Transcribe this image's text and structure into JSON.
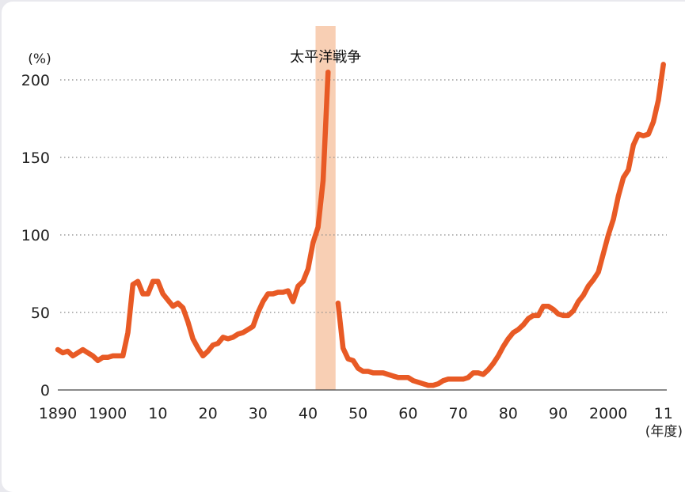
{
  "chart_data": {
    "type": "line",
    "title": "",
    "ylabel": "(%)",
    "xlabel": "(年度)",
    "ylim": [
      0,
      215
    ],
    "xlim": [
      1890,
      2012
    ],
    "yticks": [
      0,
      50,
      100,
      150,
      200
    ],
    "xticks": [
      {
        "value": 1890,
        "label": "1890"
      },
      {
        "value": 1900,
        "label": "1900"
      },
      {
        "value": 1910,
        "label": "10"
      },
      {
        "value": 1920,
        "label": "20"
      },
      {
        "value": 1930,
        "label": "30"
      },
      {
        "value": 1940,
        "label": "40"
      },
      {
        "value": 1950,
        "label": "50"
      },
      {
        "value": 1960,
        "label": "60"
      },
      {
        "value": 1970,
        "label": "70"
      },
      {
        "value": 1980,
        "label": "80"
      },
      {
        "value": 1990,
        "label": "90"
      },
      {
        "value": 2000,
        "label": "2000"
      },
      {
        "value": 2011,
        "label": "11"
      }
    ],
    "grid": "horizontal-dotted",
    "line_color": "#e85a25",
    "band_color": "#f8cfb4",
    "annotation": {
      "text": "太平洋戦争",
      "x_start": 1941.5,
      "x_end": 1945.5
    },
    "series": [
      {
        "segment": "prewar",
        "x": [
          1890,
          1891,
          1892,
          1893,
          1894,
          1895,
          1896,
          1897,
          1898,
          1899,
          1900,
          1901,
          1902,
          1903,
          1904,
          1905,
          1906,
          1907,
          1908,
          1909,
          1910,
          1911,
          1912,
          1913,
          1914,
          1915,
          1916,
          1917,
          1918,
          1919,
          1920,
          1921,
          1922,
          1923,
          1924,
          1925,
          1926,
          1927,
          1928,
          1929,
          1930,
          1931,
          1932,
          1933,
          1934,
          1935,
          1936,
          1937,
          1938,
          1939,
          1940,
          1941,
          1942,
          1943,
          1944
        ],
        "y": [
          26,
          24,
          25,
          22,
          24,
          26,
          24,
          22,
          19,
          21,
          21,
          22,
          22,
          22,
          37,
          68,
          70,
          62,
          62,
          70,
          70,
          62,
          58,
          54,
          56,
          53,
          44,
          33,
          27,
          22,
          25,
          29,
          30,
          34,
          33,
          34,
          36,
          37,
          39,
          41,
          50,
          57,
          62,
          62,
          63,
          63,
          64,
          57,
          67,
          70,
          78,
          95,
          105,
          135,
          205
        ]
      },
      {
        "segment": "postwar",
        "x": [
          1946,
          1947,
          1948,
          1949,
          1950,
          1951,
          1952,
          1953,
          1954,
          1955,
          1956,
          1957,
          1958,
          1959,
          1960,
          1961,
          1962,
          1963,
          1964,
          1965,
          1966,
          1967,
          1968,
          1969,
          1970,
          1971,
          1972,
          1973,
          1974,
          1975,
          1976,
          1977,
          1978,
          1979,
          1980,
          1981,
          1982,
          1983,
          1984,
          1985,
          1986,
          1987,
          1988,
          1989,
          1990,
          1991,
          1992,
          1993,
          1994,
          1995,
          1996,
          1997,
          1998,
          1999,
          2000,
          2001,
          2002,
          2003,
          2004,
          2005,
          2006,
          2007,
          2008,
          2009,
          2010,
          2011
        ],
        "y": [
          56,
          27,
          20,
          19,
          14,
          12,
          12,
          11,
          11,
          11,
          10,
          9,
          8,
          8,
          8,
          6,
          5,
          4,
          3,
          3,
          4,
          6,
          7,
          7,
          7,
          7,
          8,
          11,
          11,
          10,
          13,
          17,
          22,
          28,
          33,
          37,
          39,
          42,
          46,
          48,
          48,
          54,
          54,
          52,
          49,
          48,
          48,
          51,
          57,
          61,
          67,
          71,
          76,
          88,
          100,
          110,
          125,
          137,
          142,
          158,
          165,
          164,
          165,
          173,
          187,
          210
        ]
      }
    ]
  }
}
